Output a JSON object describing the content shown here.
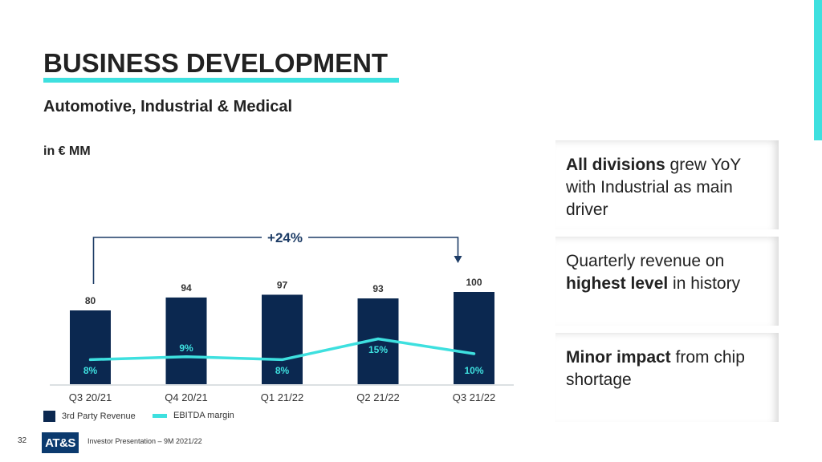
{
  "slide": {
    "title": "BUSINESS DEVELOPMENT",
    "subtitle": "Automotive, Industrial & Medical",
    "unit": "in € MM",
    "colors": {
      "accent": "#3ee0df",
      "bar": "#0b2850",
      "logo_bg": "#0b3a6e"
    }
  },
  "chart_data": {
    "type": "bar",
    "categories": [
      "Q3 20/21",
      "Q4 20/21",
      "Q1 21/22",
      "Q2 21/22",
      "Q3 21/22"
    ],
    "series": [
      {
        "name": "3rd Party Revenue",
        "kind": "bar",
        "values": [
          80,
          94,
          97,
          93,
          100
        ],
        "labels": [
          "80",
          "94",
          "97",
          "93",
          "100"
        ]
      },
      {
        "name": "EBITDA margin",
        "kind": "line",
        "values": [
          8,
          9,
          8,
          15,
          10
        ],
        "labels": [
          "8%",
          "9%",
          "8%",
          "15%",
          "10%"
        ]
      }
    ],
    "annotation": {
      "text": "+24%",
      "from": "Q3 20/21",
      "to": "Q3 21/22"
    },
    "ylabel": "in € MM",
    "legend_position": "bottom-left",
    "grid": false
  },
  "legend": {
    "items": [
      "3rd Party Revenue",
      "EBITDA margin"
    ]
  },
  "cards": [
    {
      "bold": "All divisions",
      "rest": " grew YoY with Industrial as main driver"
    },
    {
      "pre": "Quarterly revenue on ",
      "bold": "highest level",
      "rest": " in history"
    },
    {
      "bold": "Minor impact",
      "rest": " from chip shortage"
    }
  ],
  "footer": {
    "page_number": "32",
    "logo": "AT&S",
    "text": "Investor Presentation – 9M 2021/22"
  }
}
